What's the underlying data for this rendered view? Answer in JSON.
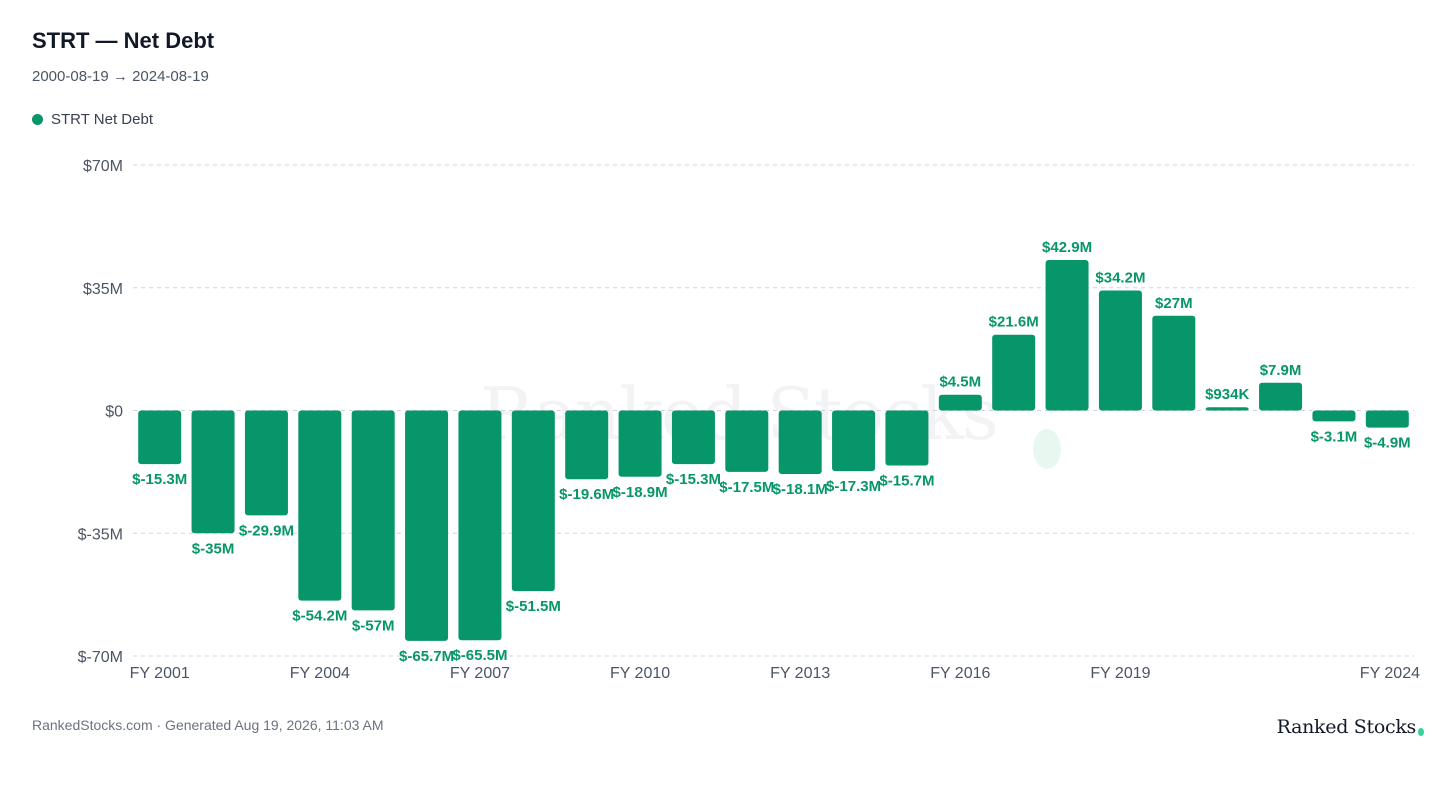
{
  "header": {
    "title": "STRT — Net Debt",
    "subtitle": "2000-08-19 → 2024-08-19",
    "legend_label": "STRT Net Debt"
  },
  "footer": {
    "source": "RankedStocks.com · Generated Aug 19, 2026, 11:03 AM",
    "brand": "Ranked Stocks",
    "watermark": "Ranked Stocks"
  },
  "colors": {
    "bar": "#079669",
    "label": "#079669",
    "grid": "#d1d5db",
    "axis_text": "#4b5563"
  },
  "chart_data": {
    "type": "bar",
    "title": "STRT — Net Debt",
    "xlabel": "",
    "ylabel": "",
    "ylim": [
      -70,
      70
    ],
    "yticks": [
      70,
      35,
      0,
      -35,
      -70
    ],
    "ytick_labels": [
      "$70M",
      "$35M",
      "$0",
      "$-35M",
      "$-70M"
    ],
    "grid": true,
    "legend_position": "top-left",
    "categories": [
      "FY 2001",
      "FY 2002",
      "FY 2003",
      "FY 2004",
      "FY 2005",
      "FY 2006",
      "FY 2007",
      "FY 2008",
      "FY 2009",
      "FY 2010",
      "FY 2011",
      "FY 2012",
      "FY 2013",
      "FY 2014",
      "FY 2015",
      "FY 2016",
      "FY 2017",
      "FY 2018",
      "FY 2019",
      "FY 2020",
      "FY 2021",
      "FY 2022",
      "FY 2023",
      "FY 2024"
    ],
    "xtick_labels_shown": [
      "FY 2001",
      "FY 2004",
      "FY 2007",
      "FY 2010",
      "FY 2013",
      "FY 2016",
      "FY 2019",
      "FY 2024"
    ],
    "series": [
      {
        "name": "STRT Net Debt",
        "values": [
          -15.3,
          -35,
          -29.9,
          -54.2,
          -57,
          -65.7,
          -65.5,
          -51.5,
          -19.6,
          -18.9,
          -15.3,
          -17.5,
          -18.1,
          -17.3,
          -15.7,
          4.5,
          21.6,
          42.9,
          34.2,
          27,
          0.934,
          7.9,
          -3.1,
          -4.9
        ],
        "labels": [
          "$-15.3M",
          "$-35M",
          "$-29.9M",
          "$-54.2M",
          "$-57M",
          "$-65.7M",
          "$-65.5M",
          "$-51.5M",
          "$-19.6M",
          "$-18.9M",
          "$-15.3M",
          "$-17.5M",
          "$-18.1M",
          "$-17.3M",
          "$-15.7M",
          "$4.5M",
          "$21.6M",
          "$42.9M",
          "$34.2M",
          "$27M",
          "$934K",
          "$7.9M",
          "$-3.1M",
          "$-4.9M"
        ]
      }
    ]
  }
}
